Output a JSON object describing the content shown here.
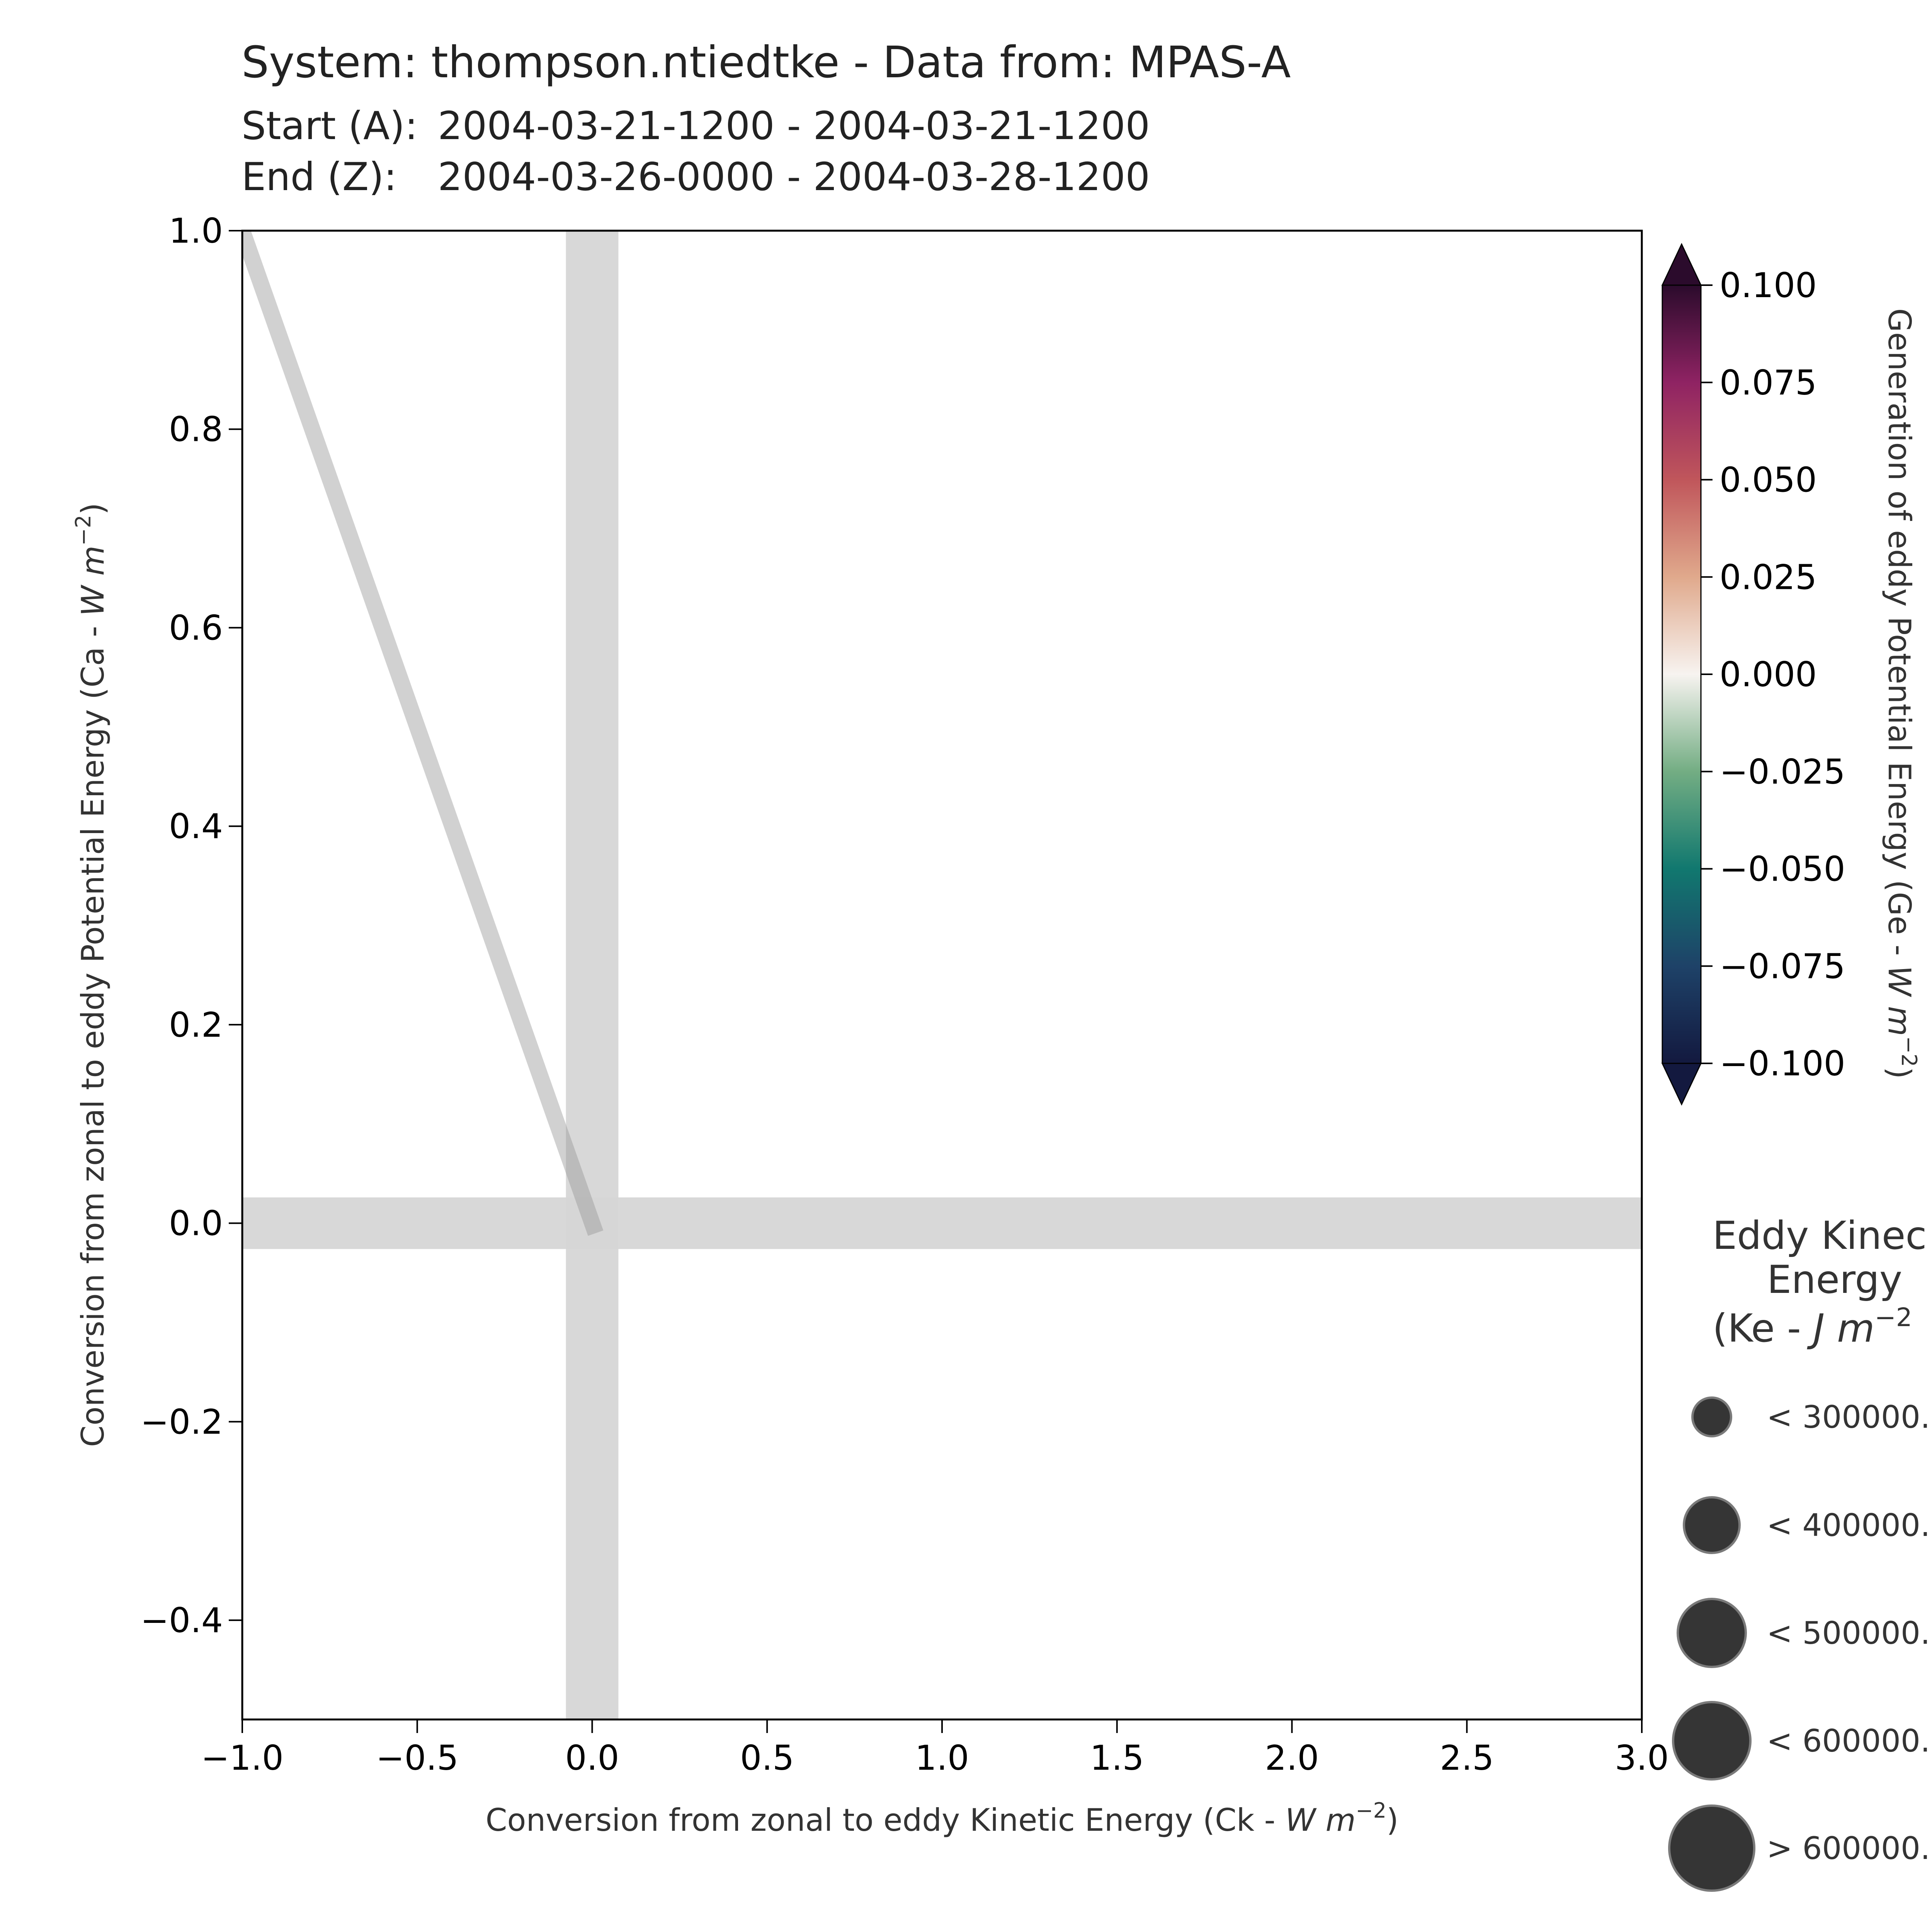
{
  "header": {
    "title": "System: thompson.ntiedtke - Data from: MPAS-A",
    "start_label": "Start (A):",
    "start_value": "2004-03-21-1200 - 2004-03-21-1200",
    "end_label": "End (Z):",
    "end_value": "2004-03-26-0000 - 2004-03-28-1200"
  },
  "colors": {
    "reference_band": "#d6d6d6",
    "trajectory": "#c8c8c8",
    "marker_fill": "#353535",
    "marker_edge": "#7a7a7a",
    "axis": "#000000",
    "text": "#333333"
  },
  "colorbar": {
    "label_main": "Generation of eddy Potential Energy (Ge - ",
    "label_unit": "W m",
    "label_exp": "−2",
    "label_close": ")",
    "range": [
      -0.1,
      0.1
    ],
    "extend": "both",
    "ticks": [
      "0.100",
      "0.075",
      "0.050",
      "0.025",
      "0.000",
      "−0.025",
      "−0.050",
      "−0.075",
      "−0.100"
    ],
    "tick_values": [
      0.1,
      0.075,
      0.05,
      0.025,
      0.0,
      -0.025,
      -0.05,
      -0.075,
      -0.1
    ],
    "gradient": [
      {
        "v": -0.1,
        "c": "#13193f"
      },
      {
        "v": -0.075,
        "c": "#1e4268"
      },
      {
        "v": -0.05,
        "c": "#11786f"
      },
      {
        "v": -0.025,
        "c": "#73ad83"
      },
      {
        "v": 0.0,
        "c": "#f7f3f0"
      },
      {
        "v": 0.025,
        "c": "#e0a98c"
      },
      {
        "v": 0.05,
        "c": "#c0565b"
      },
      {
        "v": 0.075,
        "c": "#8f2363"
      },
      {
        "v": 0.1,
        "c": "#2b0b2c"
      }
    ]
  },
  "legend": {
    "title_line1": "Eddy Kinec",
    "title_line2": "Energy",
    "title_line3_prefix": "(Ke - ",
    "title_line3_unit": "J m",
    "title_line3_exp": "−2",
    "items": [
      {
        "label": "< 300000.",
        "size_rank": 1
      },
      {
        "label": "< 400000.",
        "size_rank": 2
      },
      {
        "label": "< 500000.",
        "size_rank": 3
      },
      {
        "label": "< 600000.",
        "size_rank": 4
      },
      {
        "label": "> 600000.",
        "size_rank": 5
      }
    ]
  },
  "chart_data": {
    "type": "scatter",
    "title": "System: thompson.ntiedtke - Data from: MPAS-A",
    "xlabel_main": "Conversion from zonal to eddy Kinetic Energy (Ck - ",
    "xlabel_unit": "W m",
    "xlabel_exp": "−2",
    "xlabel_close": ")",
    "ylabel_main": "Conversion from zonal to eddy Potential Energy (Ca - ",
    "ylabel_unit": "W m",
    "ylabel_exp": "−2",
    "ylabel_close": ")",
    "xlim": [
      -1.0,
      3.0
    ],
    "ylim": [
      -0.5,
      1.0
    ],
    "xticks": [
      -1.0,
      -0.5,
      0.0,
      0.5,
      1.0,
      1.5,
      2.0,
      2.5,
      3.0
    ],
    "xtick_labels": [
      "−1.0",
      "−0.5",
      "0.0",
      "0.5",
      "1.0",
      "1.5",
      "2.0",
      "2.5",
      "3.0"
    ],
    "yticks": [
      -0.4,
      -0.2,
      0.0,
      0.2,
      0.4,
      0.6,
      0.8,
      1.0
    ],
    "ytick_labels": [
      "−0.4",
      "−0.2",
      "0.0",
      "0.2",
      "0.4",
      "0.6",
      "0.8",
      "1.0"
    ],
    "grid": false,
    "trajectory": {
      "x": [
        -1.0,
        0.01
      ],
      "y": [
        1.0,
        -0.01
      ]
    },
    "reference_bands": {
      "vertical_x": [
        -0.075,
        0.075
      ],
      "horizontal_y": [
        -0.026,
        0.026
      ]
    }
  }
}
